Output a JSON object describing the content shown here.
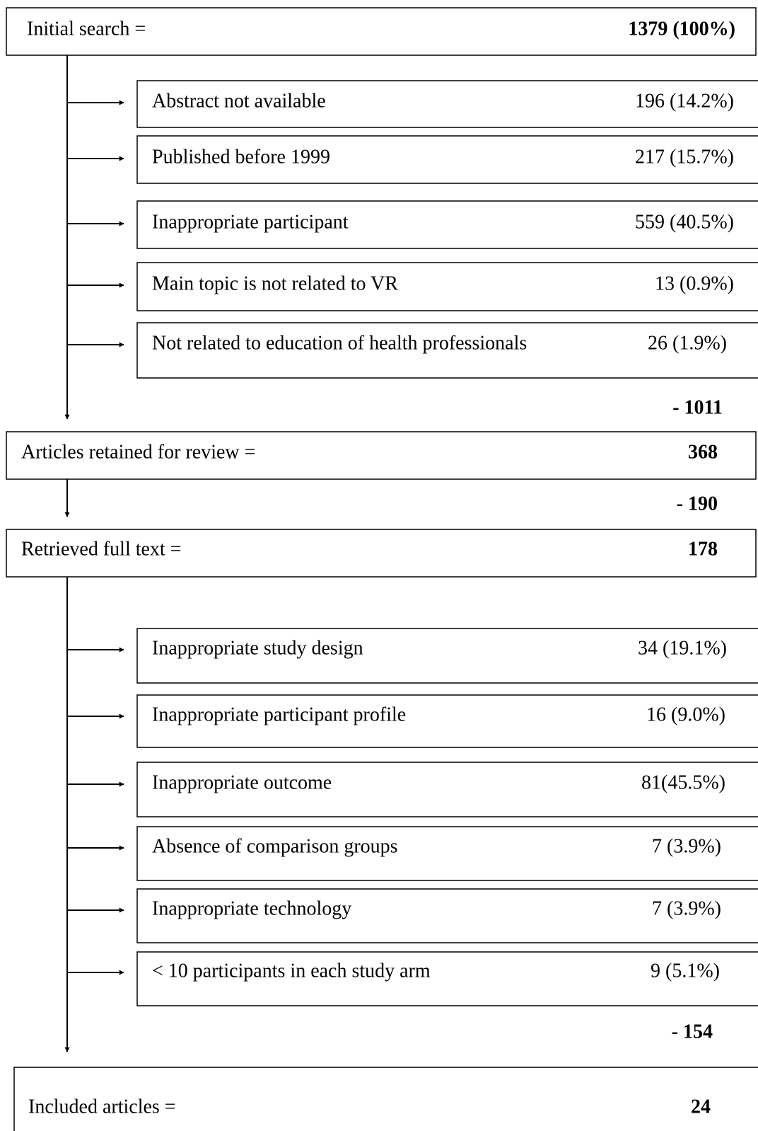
{
  "stages": [
    {
      "label": "Initial search =",
      "count": "1379 (100%)"
    },
    {
      "label": "Articles retained for review =",
      "count": "368"
    },
    {
      "label": "Retrieved full text =",
      "count": "178"
    },
    {
      "label": "Included articles =",
      "count": "24"
    }
  ],
  "exclusions": [
    [
      {
        "label": "Abstract not available",
        "count": "196 (14.2%)"
      },
      {
        "label": "Published before 1999",
        "count": "217 (15.7%)"
      },
      {
        "label": "Inappropriate participant",
        "count": "559 (40.5%)"
      },
      {
        "label": "Main topic is not related to VR",
        "count": "13 (0.9%)"
      },
      {
        "label": "Not related to education of health professionals",
        "count": "26 (1.9%)"
      }
    ],
    [
      {
        "label": "Inappropriate study design",
        "count": "34 (19.1%)"
      },
      {
        "label": "Inappropriate participant profile",
        "count": "16 (9.0%)"
      },
      {
        "label": "Inappropriate outcome",
        "count": "81(45.5%)"
      },
      {
        "label": "Absence of comparison groups",
        "count": "7 (3.9%)"
      },
      {
        "label": "Inappropriate technology",
        "count": "7 (3.9%)"
      },
      {
        "label": "< 10 participants in each study arm",
        "count": "9 (5.1%)"
      }
    ]
  ],
  "removed": [
    "- 1011",
    "- 190",
    "- 154"
  ]
}
